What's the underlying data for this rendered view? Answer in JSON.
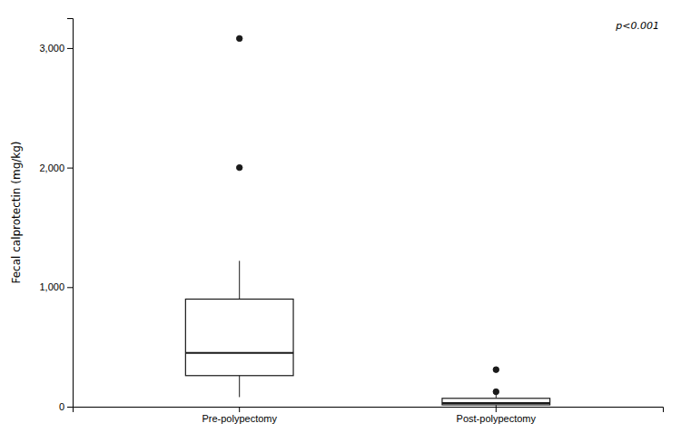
{
  "chart_data": {
    "type": "box",
    "categories": [
      "Pre-polypectomy",
      "Post-polypectomy"
    ],
    "boxes": [
      {
        "median": 450,
        "q1": 260,
        "q3": 900,
        "whisker_low": 80,
        "whisker_high": 1220,
        "outliers": [
          2000,
          3080
        ]
      },
      {
        "median": 30,
        "q1": 15,
        "q3": 70,
        "whisker_low": 0,
        "whisker_high": 105,
        "outliers": [
          310,
          125
        ]
      }
    ],
    "ylabel": "Fecal calprotectin (mg/kg)",
    "annotation": "p<0.001",
    "ylim": [
      0,
      3250
    ],
    "yticks": [
      0,
      {
        "value": 1000,
        "label": "1,000"
      },
      {
        "value": 2000,
        "label": "2,000"
      },
      {
        "value": 3000,
        "label": "3,000"
      }
    ],
    "color": "#1a1a1a",
    "grid": false
  }
}
